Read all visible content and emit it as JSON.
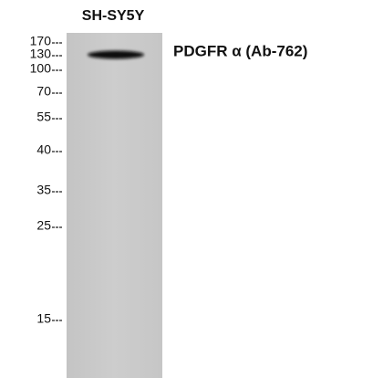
{
  "lane": {
    "label": "SH-SY5Y"
  },
  "band": {
    "label": "PDGFR α (Ab-762)"
  },
  "markers": [
    "170",
    "130",
    "100",
    "70",
    "55",
    "40",
    "35",
    "25",
    "15"
  ]
}
